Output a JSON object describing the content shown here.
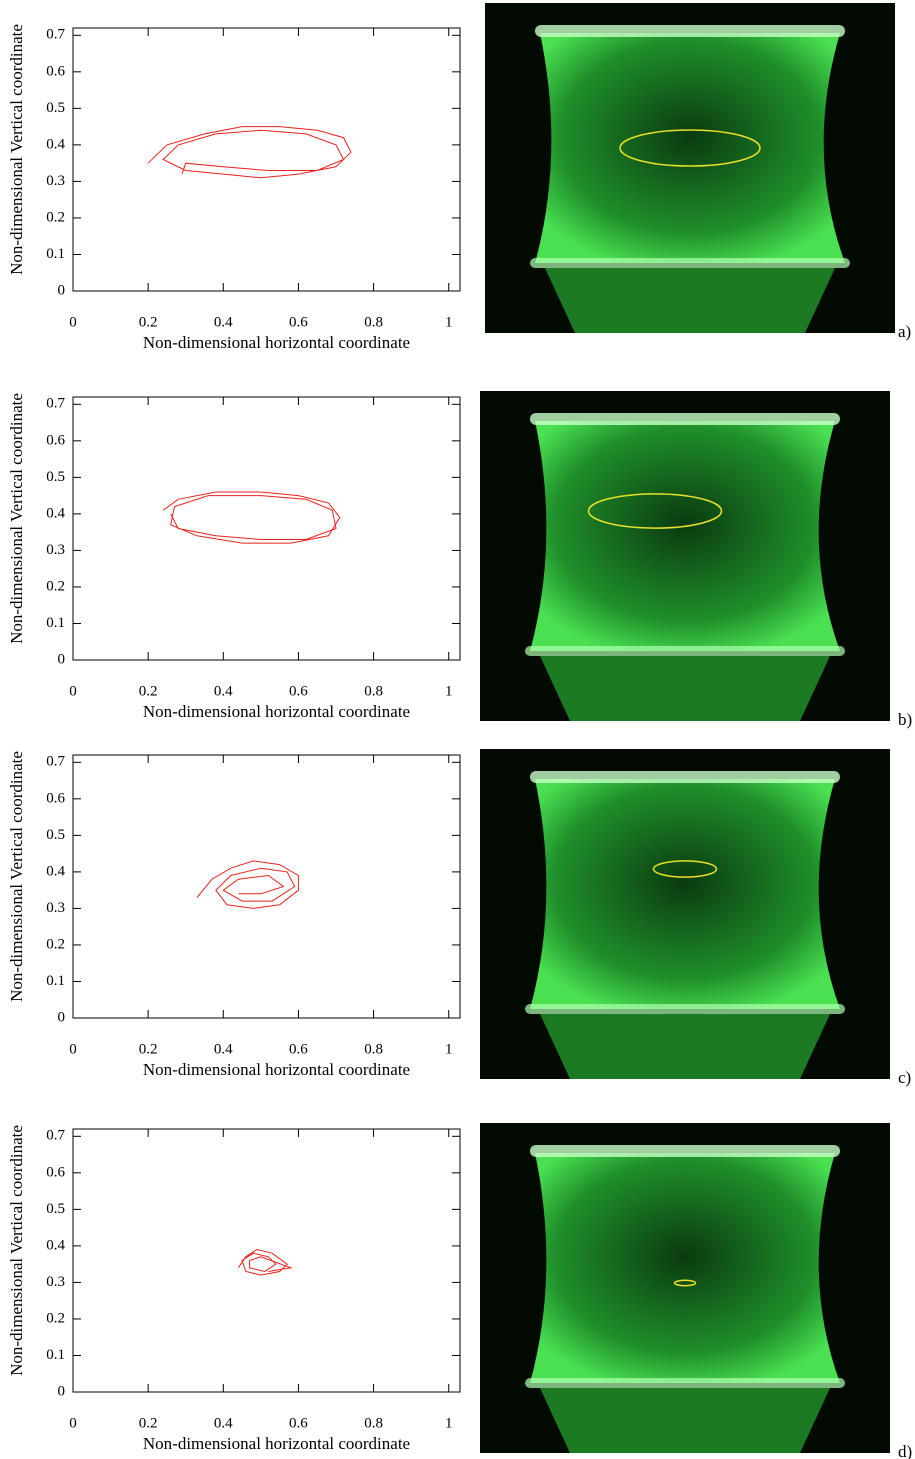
{
  "chart_data": [
    {
      "type": "line",
      "panel_label": "a)",
      "xlabel": "Non-dimensional horizontal coordinate",
      "ylabel": "Non-dimensional Vertical coordinate",
      "color": "#e8231f",
      "xlim": [
        0,
        1.03
      ],
      "ylim": [
        0,
        0.72
      ],
      "xticks": [
        0,
        0.2,
        0.4,
        0.6,
        0.8,
        1
      ],
      "yticks": [
        0,
        0.1,
        0.2,
        0.3,
        0.4,
        0.5,
        0.6,
        0.7
      ],
      "x": [
        0.2,
        0.25,
        0.35,
        0.45,
        0.55,
        0.65,
        0.72,
        0.74,
        0.7,
        0.6,
        0.5,
        0.4,
        0.3,
        0.24,
        0.28,
        0.38,
        0.5,
        0.62,
        0.7,
        0.72,
        0.65,
        0.52,
        0.4,
        0.3,
        0.29
      ],
      "values": [
        0.35,
        0.4,
        0.43,
        0.45,
        0.45,
        0.44,
        0.42,
        0.38,
        0.34,
        0.32,
        0.31,
        0.32,
        0.33,
        0.36,
        0.4,
        0.43,
        0.44,
        0.43,
        0.4,
        0.36,
        0.33,
        0.33,
        0.34,
        0.35,
        0.32
      ]
    },
    {
      "type": "line",
      "panel_label": "b)",
      "xlabel": "Non-dimensional horizontal coordinate",
      "ylabel": "Non-dimensional Vertical coordinate",
      "color": "#e8231f",
      "xlim": [
        0,
        1.03
      ],
      "ylim": [
        0,
        0.72
      ],
      "xticks": [
        0,
        0.2,
        0.4,
        0.6,
        0.8,
        1
      ],
      "yticks": [
        0,
        0.1,
        0.2,
        0.3,
        0.4,
        0.5,
        0.6,
        0.7
      ],
      "x": [
        0.24,
        0.28,
        0.38,
        0.5,
        0.6,
        0.68,
        0.71,
        0.68,
        0.58,
        0.45,
        0.33,
        0.26,
        0.27,
        0.36,
        0.5,
        0.62,
        0.69,
        0.7,
        0.62,
        0.5,
        0.38,
        0.28,
        0.26
      ],
      "values": [
        0.41,
        0.44,
        0.46,
        0.46,
        0.45,
        0.43,
        0.39,
        0.34,
        0.32,
        0.32,
        0.34,
        0.37,
        0.42,
        0.45,
        0.45,
        0.44,
        0.41,
        0.36,
        0.33,
        0.33,
        0.34,
        0.36,
        0.4
      ]
    },
    {
      "type": "line",
      "panel_label": "c)",
      "xlabel": "Non-dimensional horizontal coordinate",
      "ylabel": "Non-dimensional Vertical coordinate",
      "color": "#e8231f",
      "xlim": [
        0,
        1.03
      ],
      "ylim": [
        0,
        0.72
      ],
      "xticks": [
        0,
        0.2,
        0.4,
        0.6,
        0.8,
        1
      ],
      "yticks": [
        0,
        0.1,
        0.2,
        0.3,
        0.4,
        0.5,
        0.6,
        0.7
      ],
      "x": [
        0.33,
        0.37,
        0.42,
        0.48,
        0.55,
        0.6,
        0.6,
        0.55,
        0.48,
        0.41,
        0.38,
        0.42,
        0.5,
        0.57,
        0.59,
        0.53,
        0.45,
        0.4,
        0.44,
        0.52,
        0.56,
        0.5,
        0.44
      ],
      "values": [
        0.33,
        0.38,
        0.41,
        0.43,
        0.42,
        0.39,
        0.35,
        0.31,
        0.3,
        0.31,
        0.35,
        0.39,
        0.41,
        0.4,
        0.36,
        0.32,
        0.32,
        0.35,
        0.38,
        0.39,
        0.36,
        0.34,
        0.34
      ]
    },
    {
      "type": "line",
      "panel_label": "d)",
      "xlabel": "Non-dimensional horizontal coordinate",
      "ylabel": "Non-dimensional Vertical coordinate",
      "color": "#e8231f",
      "xlim": [
        0,
        1.03
      ],
      "ylim": [
        0,
        0.72
      ],
      "xticks": [
        0,
        0.2,
        0.4,
        0.6,
        0.8,
        1
      ],
      "yticks": [
        0,
        0.1,
        0.2,
        0.3,
        0.4,
        0.5,
        0.6,
        0.7
      ],
      "x": [
        0.44,
        0.46,
        0.49,
        0.53,
        0.57,
        0.55,
        0.5,
        0.46,
        0.45,
        0.48,
        0.52,
        0.54,
        0.51,
        0.47,
        0.47,
        0.5,
        0.58,
        0.52
      ],
      "values": [
        0.34,
        0.37,
        0.39,
        0.38,
        0.35,
        0.33,
        0.32,
        0.33,
        0.36,
        0.38,
        0.37,
        0.35,
        0.33,
        0.34,
        0.36,
        0.37,
        0.34,
        0.33
      ]
    }
  ]
}
